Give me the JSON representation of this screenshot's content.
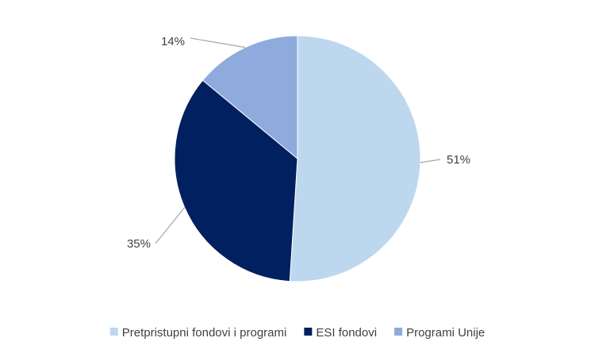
{
  "chart_data": {
    "type": "pie",
    "title": "",
    "slices": [
      {
        "name": "Pretpristupni fondovi i programi",
        "value": 51,
        "label": "51%",
        "color": "#bdd7ee"
      },
      {
        "name": "ESI fondovi",
        "value": 35,
        "label": "35%",
        "color": "#002060"
      },
      {
        "name": "Programi Unije",
        "value": 14,
        "label": "14%",
        "color": "#8faadc"
      }
    ],
    "legend_position": "bottom",
    "start_angle_deg": 0,
    "direction": "clockwise"
  }
}
